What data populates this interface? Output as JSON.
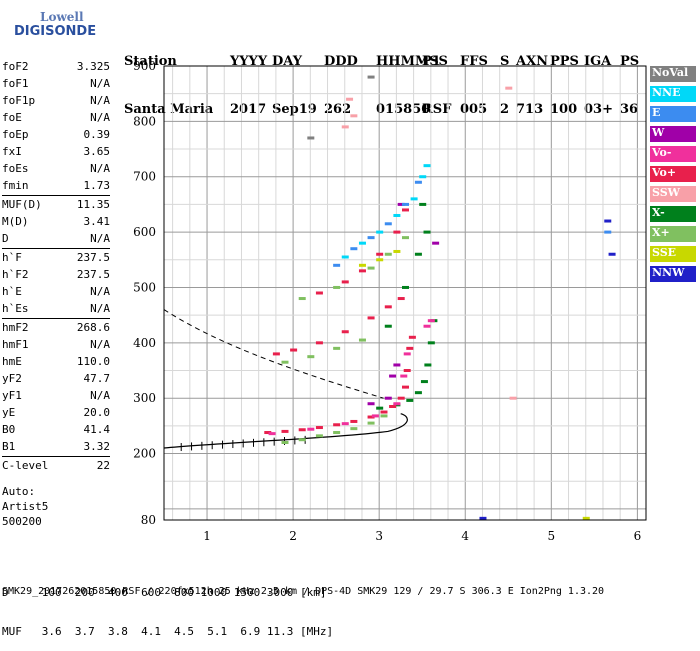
{
  "logo": {
    "line1": "Lowell",
    "line2": "DIGISONDE"
  },
  "header": {
    "labels": [
      "Station",
      "YYYY",
      "DAY",
      "DDD",
      "HHMMSS",
      "P1",
      "FFS",
      "S",
      "AXN",
      "PPS",
      "IGA",
      "PS"
    ],
    "values": [
      "Santa Maria",
      "2017",
      "Sep19",
      "262",
      "015850",
      "RSF",
      "005",
      "2",
      "713",
      "100",
      "03+",
      "36"
    ]
  },
  "params": [
    [
      {
        "k": "foF2",
        "v": "3.325"
      },
      {
        "k": "foF1",
        "v": "N/A"
      },
      {
        "k": "foF1p",
        "v": "N/A"
      },
      {
        "k": "foE",
        "v": "N/A"
      },
      {
        "k": "foEp",
        "v": "0.39"
      },
      {
        "k": "fxI",
        "v": "3.65"
      },
      {
        "k": "foEs",
        "v": "N/A"
      },
      {
        "k": "fmin",
        "v": "1.73"
      }
    ],
    [
      {
        "k": "MUF(D)",
        "v": "11.35"
      },
      {
        "k": "M(D)",
        "v": "3.41"
      },
      {
        "k": "D",
        "v": "N/A"
      }
    ],
    [
      {
        "k": "h`F",
        "v": "237.5"
      },
      {
        "k": "h`F2",
        "v": "237.5"
      },
      {
        "k": "h`E",
        "v": "N/A"
      },
      {
        "k": "h`Es",
        "v": "N/A"
      }
    ],
    [
      {
        "k": "hmF2",
        "v": "268.6"
      },
      {
        "k": "hmF1",
        "v": "N/A"
      },
      {
        "k": "hmE",
        "v": "110.0"
      },
      {
        "k": "yF2",
        "v": "47.7"
      },
      {
        "k": "yF1",
        "v": "N/A"
      },
      {
        "k": "yE",
        "v": "20.0"
      },
      {
        "k": "B0",
        "v": "41.4"
      },
      {
        "k": "B1",
        "v": "3.32"
      }
    ],
    [
      {
        "k": "C-level",
        "v": "22"
      }
    ]
  ],
  "auto": {
    "line1": "Auto:",
    "line2": "Artist5",
    "line3": "500200"
  },
  "legend": [
    {
      "label": "NoVal",
      "color": "#808080"
    },
    {
      "label": "NNE",
      "color": "#00d8f8"
    },
    {
      "label": "E",
      "color": "#3c8cf0"
    },
    {
      "label": "W",
      "color": "#a000a8"
    },
    {
      "label": "Vo-",
      "color": "#f0309c"
    },
    {
      "label": "Vo+",
      "color": "#e8204c"
    },
    {
      "label": "SSW",
      "color": "#f8a0a8"
    },
    {
      "label": "X-",
      "color": "#00801c"
    },
    {
      "label": "X+",
      "color": "#80c060"
    },
    {
      "label": "SSE",
      "color": "#c8d800"
    },
    {
      "label": "NNW",
      "color": "#2020c8"
    }
  ],
  "bottom": {
    "line1": "D     100  200  400  600  800 1000 1500 3000 [km]",
    "line2": "MUF   3.6  3.7  3.8  4.1  4.5  5.1  6.9 11.3 [MHz]"
  },
  "footer": "SMK29_2017262015850.RSF / 220fx512h 25 kHz 2.5 km / DPS-4D SMK29 129 / 29.7 S 306.3 E Ion2Png 1.3.20",
  "chart_data": {
    "type": "scatter",
    "title": "",
    "xlabel": "",
    "ylabel": "",
    "xlim": [
      0.5,
      6.1
    ],
    "ylim": [
      80,
      900
    ],
    "xticks": [
      1,
      2,
      3,
      4,
      5,
      6
    ],
    "yticks": [
      80,
      200,
      300,
      400,
      500,
      600,
      700,
      800,
      900
    ],
    "grid": true,
    "legend_position": "right",
    "series": [
      {
        "name": "X-",
        "color": "#00801c",
        "points": [
          [
            3.0,
            282
          ],
          [
            3.2,
            288
          ],
          [
            3.35,
            296
          ],
          [
            3.45,
            310
          ],
          [
            3.52,
            330
          ],
          [
            3.56,
            360
          ],
          [
            3.6,
            400
          ],
          [
            3.63,
            440
          ],
          [
            3.1,
            430
          ],
          [
            3.3,
            500
          ],
          [
            3.45,
            560
          ],
          [
            3.55,
            600
          ],
          [
            3.5,
            650
          ]
        ]
      },
      {
        "name": "X+",
        "color": "#80c060",
        "points": [
          [
            1.9,
            220
          ],
          [
            2.1,
            225
          ],
          [
            2.3,
            232
          ],
          [
            2.5,
            238
          ],
          [
            2.7,
            245
          ],
          [
            2.9,
            255
          ],
          [
            3.05,
            268
          ],
          [
            1.9,
            365
          ],
          [
            2.2,
            375
          ],
          [
            2.5,
            390
          ],
          [
            2.8,
            405
          ],
          [
            2.1,
            480
          ],
          [
            2.5,
            500
          ],
          [
            2.9,
            535
          ],
          [
            3.1,
            560
          ],
          [
            3.3,
            590
          ]
        ]
      },
      {
        "name": "Vo+",
        "color": "#e8204c",
        "points": [
          [
            1.7,
            238
          ],
          [
            1.9,
            240
          ],
          [
            2.1,
            243
          ],
          [
            2.3,
            247
          ],
          [
            2.5,
            252
          ],
          [
            2.7,
            258
          ],
          [
            2.9,
            266
          ],
          [
            3.05,
            275
          ],
          [
            3.15,
            285
          ],
          [
            3.25,
            300
          ],
          [
            3.3,
            320
          ],
          [
            3.32,
            350
          ],
          [
            3.35,
            390
          ],
          [
            3.38,
            410
          ],
          [
            1.8,
            380
          ],
          [
            2.0,
            387
          ],
          [
            2.3,
            400
          ],
          [
            2.6,
            420
          ],
          [
            2.9,
            445
          ],
          [
            3.1,
            465
          ],
          [
            3.25,
            480
          ],
          [
            2.3,
            490
          ],
          [
            2.6,
            510
          ],
          [
            2.8,
            530
          ],
          [
            3.0,
            560
          ],
          [
            3.2,
            600
          ],
          [
            3.3,
            640
          ]
        ]
      },
      {
        "name": "Vo-",
        "color": "#f0309c",
        "points": [
          [
            1.75,
            236
          ],
          [
            2.2,
            244
          ],
          [
            2.6,
            254
          ],
          [
            2.95,
            268
          ],
          [
            3.2,
            290
          ],
          [
            3.28,
            340
          ],
          [
            3.32,
            380
          ],
          [
            3.55,
            430
          ],
          [
            3.6,
            440
          ]
        ]
      },
      {
        "name": "W",
        "color": "#a000a8",
        "points": [
          [
            2.9,
            290
          ],
          [
            3.1,
            300
          ],
          [
            3.15,
            340
          ],
          [
            3.2,
            360
          ],
          [
            3.65,
            580
          ],
          [
            3.25,
            650
          ]
        ]
      },
      {
        "name": "NNE",
        "color": "#00d8f8",
        "points": [
          [
            2.6,
            555
          ],
          [
            2.8,
            580
          ],
          [
            3.0,
            600
          ],
          [
            3.2,
            630
          ],
          [
            3.4,
            660
          ],
          [
            3.5,
            700
          ],
          [
            3.55,
            720
          ]
        ]
      },
      {
        "name": "E",
        "color": "#3c8cf0",
        "points": [
          [
            2.5,
            540
          ],
          [
            2.7,
            570
          ],
          [
            2.9,
            590
          ],
          [
            3.1,
            615
          ],
          [
            3.3,
            650
          ],
          [
            3.45,
            690
          ],
          [
            5.65,
            600
          ]
        ]
      },
      {
        "name": "SSW",
        "color": "#f8a0a8",
        "points": [
          [
            2.6,
            790
          ],
          [
            2.7,
            810
          ],
          [
            2.65,
            840
          ],
          [
            4.5,
            860
          ],
          [
            4.55,
            300
          ]
        ]
      },
      {
        "name": "SSE",
        "color": "#c8d800",
        "points": [
          [
            2.8,
            540
          ],
          [
            3.0,
            550
          ],
          [
            3.2,
            565
          ],
          [
            5.4,
            83
          ]
        ]
      },
      {
        "name": "NNW",
        "color": "#2020c8",
        "points": [
          [
            5.65,
            620
          ],
          [
            5.7,
            560
          ],
          [
            4.2,
            83
          ]
        ]
      },
      {
        "name": "NoVal",
        "color": "#808080",
        "points": [
          [
            2.9,
            880
          ],
          [
            2.2,
            770
          ]
        ]
      }
    ]
  }
}
